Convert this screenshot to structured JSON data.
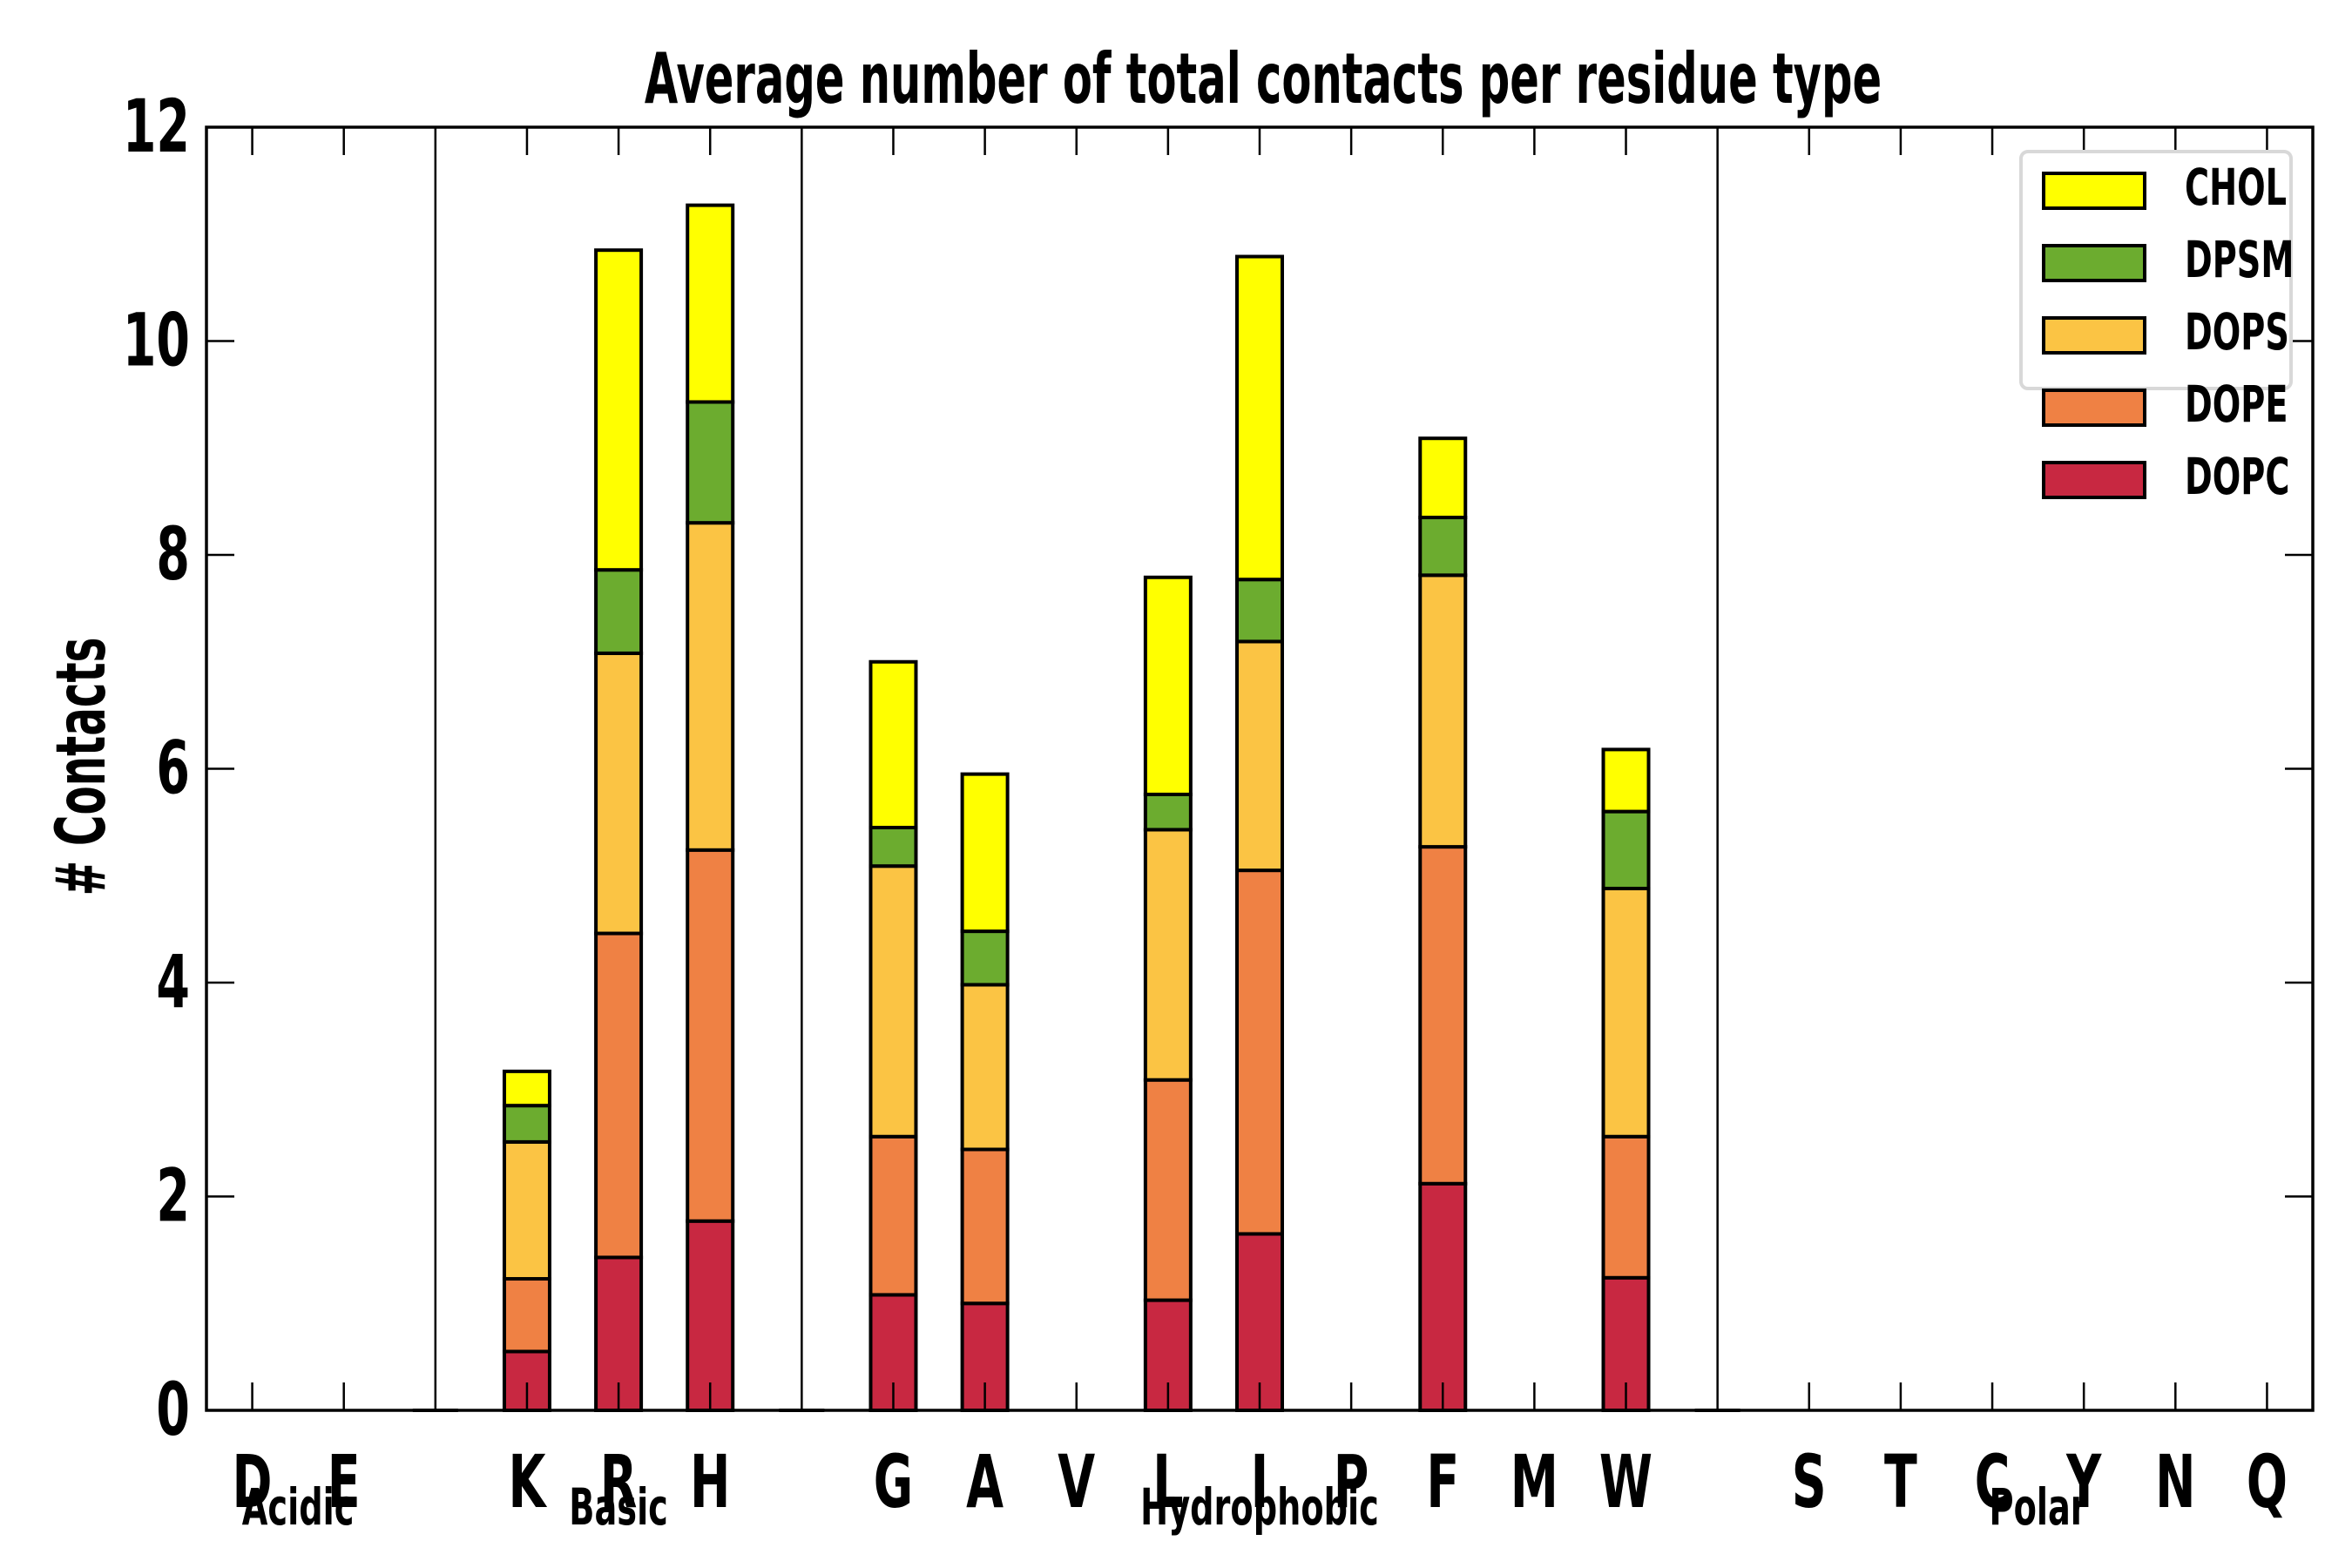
{
  "chart_data": {
    "type": "bar",
    "stacked": true,
    "title": "Average number of total contacts per residue type",
    "xlabel": "",
    "ylabel": "# Contacts",
    "ylim": [
      0,
      12
    ],
    "yticks": [
      0,
      2,
      4,
      6,
      8,
      10,
      12
    ],
    "ytick_labels": [
      "0",
      "2",
      "4",
      "6",
      "8",
      "10",
      "12"
    ],
    "grid": false,
    "legend_position": "top-right",
    "categories": [
      "D",
      "E",
      "",
      "K",
      "R",
      "H",
      "",
      "G",
      "A",
      "V",
      "L",
      "I",
      "P",
      "F",
      "M",
      "W",
      "",
      "S",
      "T",
      "C",
      "Y",
      "N",
      "Q"
    ],
    "group_separators_after": [
      "E",
      "H",
      "W"
    ],
    "groups": [
      {
        "label": "Acidic",
        "members": [
          "D",
          "E"
        ]
      },
      {
        "label": "Basic",
        "members": [
          "K",
          "R",
          "H"
        ]
      },
      {
        "label": "Hydrophobic",
        "members": [
          "G",
          "A",
          "V",
          "L",
          "I",
          "P",
          "F",
          "M",
          "W"
        ]
      },
      {
        "label": "Polar",
        "members": [
          "S",
          "T",
          "C",
          "Y",
          "N",
          "Q"
        ]
      }
    ],
    "series": [
      {
        "name": "DOPC",
        "color": "#c82841",
        "values": [
          0,
          0,
          0,
          0.55,
          1.43,
          1.77,
          0,
          1.08,
          1.0,
          0,
          1.03,
          1.65,
          0,
          2.12,
          0,
          1.24,
          0,
          0,
          0,
          0,
          0,
          0,
          0
        ]
      },
      {
        "name": "DOPE",
        "color": "#ef8144",
        "values": [
          0,
          0,
          0,
          0.68,
          3.03,
          3.47,
          0,
          1.48,
          1.44,
          0,
          2.06,
          3.4,
          0,
          3.15,
          0,
          1.32,
          0,
          0,
          0,
          0,
          0,
          0,
          0
        ]
      },
      {
        "name": "DOPS",
        "color": "#fbc444",
        "values": [
          0,
          0,
          0,
          1.28,
          2.62,
          3.06,
          0,
          2.53,
          1.54,
          0,
          2.34,
          2.14,
          0,
          2.54,
          0,
          2.32,
          0,
          0,
          0,
          0,
          0,
          0,
          0
        ]
      },
      {
        "name": "DPSM",
        "color": "#6cac2f",
        "values": [
          0,
          0,
          0,
          0.34,
          0.78,
          1.13,
          0,
          0.36,
          0.5,
          0,
          0.33,
          0.58,
          0,
          0.54,
          0,
          0.72,
          0,
          0,
          0,
          0,
          0,
          0,
          0
        ]
      },
      {
        "name": "CHOL",
        "color": "#ffff00",
        "values": [
          0,
          0,
          0,
          0.32,
          2.99,
          1.84,
          0,
          1.55,
          1.47,
          0,
          2.03,
          3.02,
          0,
          0.74,
          0,
          0.58,
          0,
          0,
          0,
          0,
          0,
          0,
          0
        ]
      }
    ],
    "legend_order": [
      "CHOL",
      "DPSM",
      "DOPS",
      "DOPE",
      "DOPC"
    ]
  }
}
